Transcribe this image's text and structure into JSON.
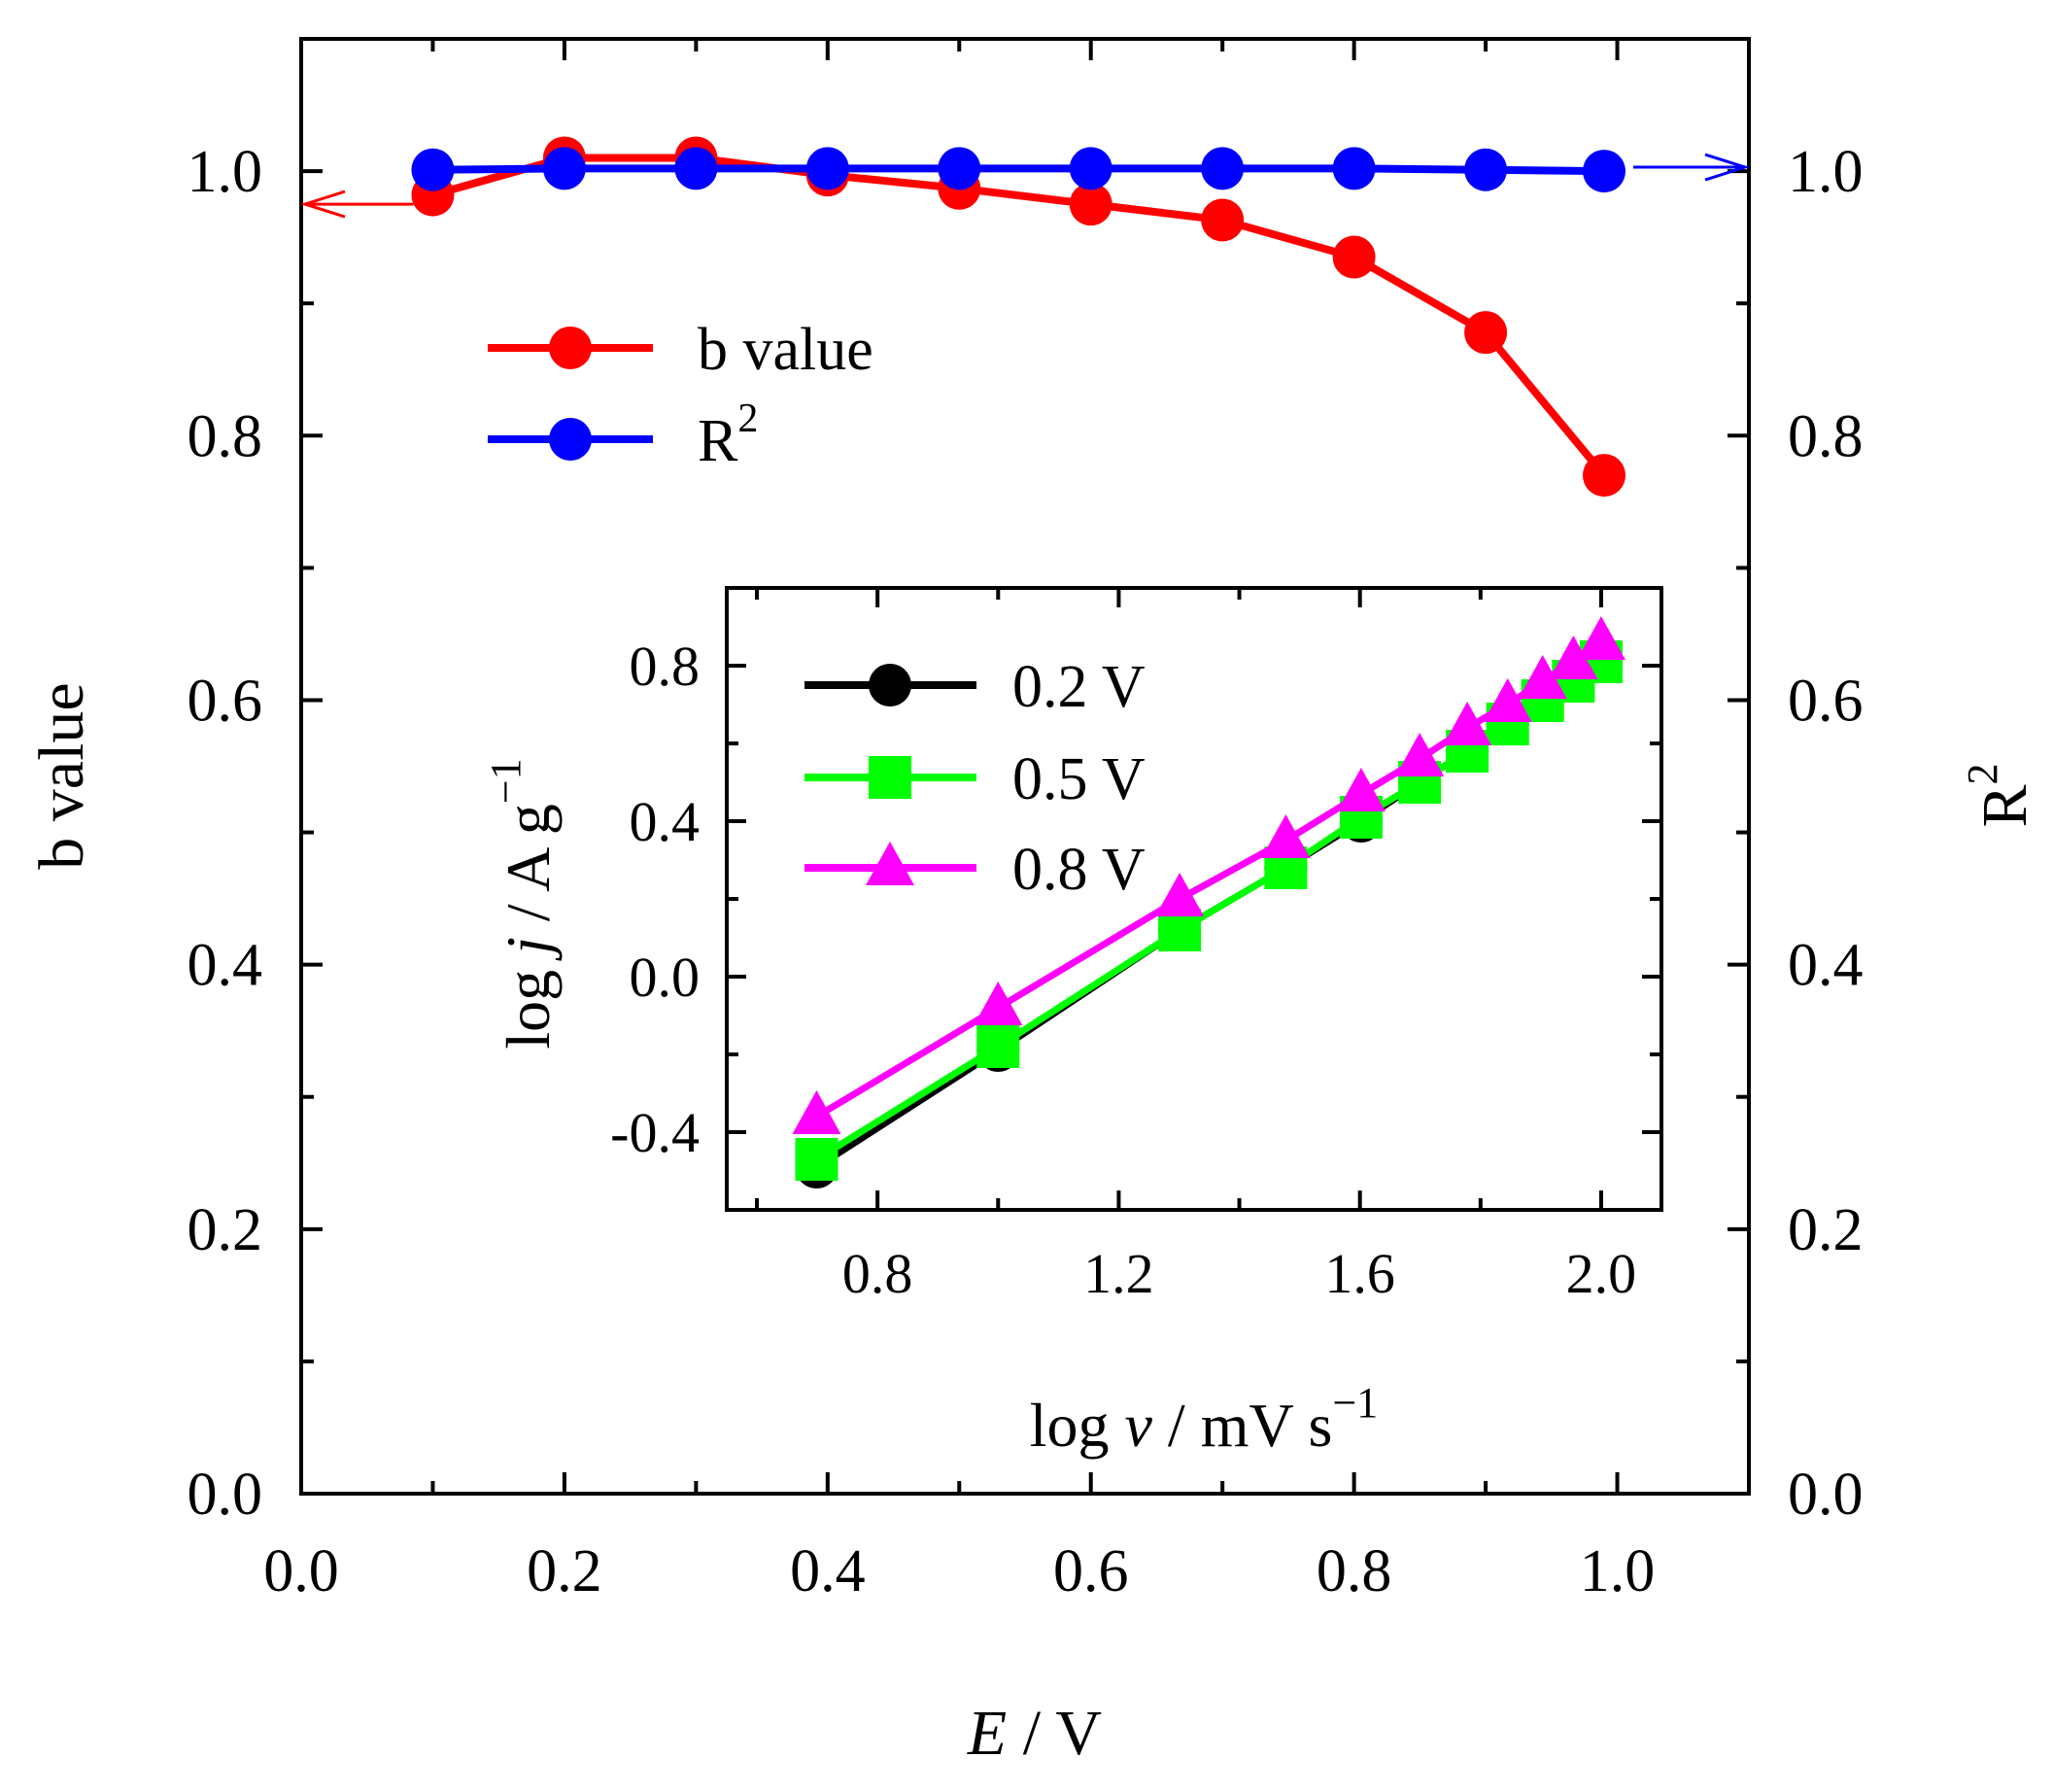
{
  "chart_data": [
    {
      "type": "line",
      "xlabel": "E / V",
      "ylabel": "b value",
      "y2label": "R^2",
      "xlim": [
        0.0,
        1.1
      ],
      "ylim": [
        0.0,
        1.1
      ],
      "y2lim": [
        0.0,
        1.1
      ],
      "xticks": [
        "0.0",
        "0.2",
        "0.4",
        "0.6",
        "0.8",
        "1.0"
      ],
      "yticks": [
        "0.0",
        "0.2",
        "0.4",
        "0.6",
        "0.8",
        "1.0"
      ],
      "y2ticks": [
        "0.0",
        "0.2",
        "0.4",
        "0.6",
        "0.8",
        "1.0"
      ],
      "legend_position": "upper-left",
      "series": [
        {
          "name": "b value",
          "axis": "left",
          "color": "#ff0000",
          "marker": "circle",
          "x": [
            0.1,
            0.2,
            0.3,
            0.4,
            0.5,
            0.6,
            0.7,
            0.8,
            0.9,
            0.99
          ],
          "y": [
            0.982,
            1.01,
            1.01,
            0.997,
            0.987,
            0.975,
            0.963,
            0.935,
            0.878,
            0.77
          ]
        },
        {
          "name": "R",
          "name_superscript": "2",
          "axis": "right",
          "color": "#0000ff",
          "marker": "circle",
          "x": [
            0.1,
            0.2,
            0.3,
            0.4,
            0.5,
            0.6,
            0.7,
            0.8,
            0.9,
            0.99
          ],
          "y": [
            1.001,
            1.002,
            1.002,
            1.002,
            1.002,
            1.002,
            1.002,
            1.002,
            1.001,
            1.0
          ]
        }
      ],
      "annotations": [
        {
          "type": "arrow",
          "points_to": "left axis",
          "color": "#ff0000"
        },
        {
          "type": "arrow",
          "points_to": "right axis",
          "color": "#0000ff"
        }
      ]
    },
    {
      "type": "line",
      "inset": true,
      "xlabel": "log v / mV s",
      "xlabel_superscript": "−1",
      "ylabel": "log j / A g",
      "ylabel_superscript": "−1",
      "xlim": [
        0.55,
        2.1
      ],
      "ylim": [
        -0.6,
        1.0
      ],
      "xticks": [
        "0.8",
        "1.2",
        "1.6",
        "2.0"
      ],
      "yticks": [
        "-0.4",
        "0.0",
        "0.4",
        "0.8"
      ],
      "legend_position": "upper-left",
      "series": [
        {
          "name": "0.2 V",
          "color": "#000000",
          "marker": "circle",
          "x": [
            0.699,
            1.0,
            1.301,
            1.477,
            1.602,
            1.699,
            1.778,
            1.845,
            1.903,
            1.954,
            2.0
          ],
          "y": [
            -0.49,
            -0.19,
            0.12,
            0.28,
            0.4,
            0.5,
            0.58,
            0.65,
            0.71,
            0.76,
            0.81
          ]
        },
        {
          "name": "0.5 V",
          "color": "#00ff00",
          "marker": "square",
          "x": [
            0.699,
            1.0,
            1.301,
            1.477,
            1.602,
            1.699,
            1.778,
            1.845,
            1.903,
            1.954,
            2.0
          ],
          "y": [
            -0.47,
            -0.18,
            0.12,
            0.28,
            0.41,
            0.5,
            0.58,
            0.65,
            0.71,
            0.76,
            0.81
          ]
        },
        {
          "name": "0.8 V",
          "color": "#ff00ff",
          "marker": "triangle",
          "x": [
            0.699,
            1.0,
            1.301,
            1.477,
            1.602,
            1.699,
            1.778,
            1.845,
            1.903,
            1.954,
            2.0
          ],
          "y": [
            -0.36,
            -0.08,
            0.2,
            0.35,
            0.47,
            0.56,
            0.64,
            0.7,
            0.76,
            0.81,
            0.86
          ]
        }
      ]
    }
  ]
}
